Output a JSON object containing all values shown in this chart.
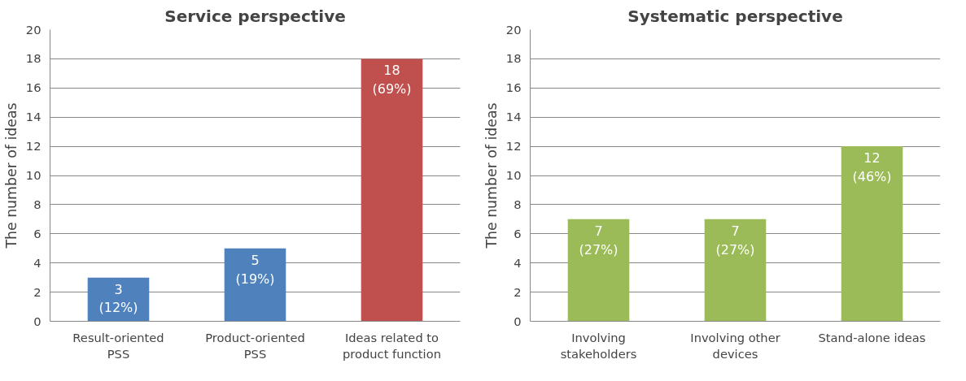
{
  "chart_data": [
    {
      "type": "bar",
      "title": "Service perspective",
      "ylabel": "The number of ideas",
      "categories": [
        "Result-oriented\nPSS",
        "Product-oriented\nPSS",
        "Ideas related to\nproduct function"
      ],
      "values": [
        3,
        5,
        18
      ],
      "colors": [
        "#4f81bd",
        "#4f81bd",
        "#c0504d"
      ],
      "value_labels": [
        "3\n(12%)",
        "5\n(19%)",
        "18\n(69%)"
      ],
      "ylim": [
        0,
        20
      ],
      "yticks": [
        0,
        2,
        4,
        6,
        8,
        10,
        12,
        14,
        16,
        18,
        20
      ],
      "grid": "y",
      "legend": false
    },
    {
      "type": "bar",
      "title": "Systematic perspective",
      "ylabel": "The number of ideas",
      "categories": [
        "Involving\nstakeholders",
        "Involving other\ndevices",
        "Stand-alone ideas"
      ],
      "values": [
        7,
        7,
        12
      ],
      "colors": [
        "#9bbb59",
        "#9bbb59",
        "#9bbb59"
      ],
      "value_labels": [
        "7\n(27%)",
        "7\n(27%)",
        "12\n(46%)"
      ],
      "ylim": [
        0,
        20
      ],
      "yticks": [
        0,
        2,
        4,
        6,
        8,
        10,
        12,
        14,
        16,
        18,
        20
      ],
      "grid": "y",
      "legend": false
    }
  ]
}
